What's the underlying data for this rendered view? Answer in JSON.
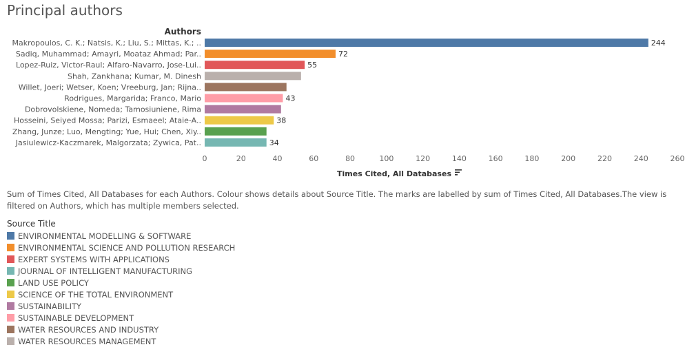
{
  "page": {
    "clipped_text": "",
    "title": "Principal authors"
  },
  "caption": "Sum of Times Cited, All Databases for each Authors. Colour shows details about Source Title. The marks are labelled by sum of Times Cited, All Databases.The view is filtered on Authors, which has multiple members selected.",
  "chart_data": {
    "type": "bar",
    "orientation": "horizontal",
    "row_header": "Authors",
    "xlabel": "Times Cited, All Databases",
    "xlabel_icon": "sort-descending-icon",
    "xlim": [
      0,
      260
    ],
    "xticks": [
      0,
      20,
      40,
      60,
      80,
      100,
      120,
      140,
      160,
      180,
      200,
      220,
      240,
      260
    ],
    "grid": false,
    "legend_position": "bottom",
    "categories": [
      "Makropoulos, C. K.; Natsis, K.; Liu, S.; Mittas, K.; ..",
      "Sadiq, Muhammad; Amayri, Moataz Ahmad; Par..",
      "Lopez-Ruiz, Victor-Raul; Alfaro-Navarro, Jose-Lui..",
      "Shah, Zankhana; Kumar, M. Dinesh",
      "Willet, Joeri; Wetser, Koen; Vreeburg, Jan; Rijna..",
      "Rodrigues, Margarida; Franco, Mario",
      "Dobrovolskiene, Nomeda; Tamosiuniene, Rima",
      "Hosseini, Seiyed Mossa; Parizi, Esmaeel; Ataie-A..",
      "Zhang, Junze; Luo, Mengting; Yue, Hui; Chen, Xiy..",
      "Jasiulewicz-Kaczmarek, Malgorzata; Zywica, Pat.."
    ],
    "values": [
      244,
      72,
      55,
      53,
      45,
      43,
      42,
      38,
      34,
      34
    ],
    "data_labels": [
      "244",
      "72",
      "55",
      "",
      "",
      "43",
      "",
      "38",
      "",
      "34"
    ],
    "source_titles": [
      "ENVIRONMENTAL MODELLING & SOFTWARE",
      "ENVIRONMENTAL SCIENCE AND POLLUTION RESEARCH",
      "EXPERT SYSTEMS WITH APPLICATIONS",
      "WATER RESOURCES MANAGEMENT",
      "WATER RESOURCES AND INDUSTRY",
      "SUSTAINABLE DEVELOPMENT",
      "SUSTAINABILITY",
      "SCIENCE OF THE TOTAL ENVIRONMENT",
      "LAND USE POLICY",
      "JOURNAL OF INTELLIGENT MANUFACTURING"
    ],
    "legend_title": "Source Title",
    "legend": [
      {
        "name": "ENVIRONMENTAL MODELLING & SOFTWARE",
        "color": "#4e79a7"
      },
      {
        "name": "ENVIRONMENTAL SCIENCE AND POLLUTION RESEARCH",
        "color": "#f28e2b"
      },
      {
        "name": "EXPERT SYSTEMS WITH APPLICATIONS",
        "color": "#e15759"
      },
      {
        "name": "JOURNAL OF INTELLIGENT MANUFACTURING",
        "color": "#76b7b2"
      },
      {
        "name": "LAND USE POLICY",
        "color": "#59a14f"
      },
      {
        "name": "SCIENCE OF THE TOTAL ENVIRONMENT",
        "color": "#edc948"
      },
      {
        "name": "SUSTAINABILITY",
        "color": "#b07aa1"
      },
      {
        "name": "SUSTAINABLE DEVELOPMENT",
        "color": "#ff9da7"
      },
      {
        "name": "WATER RESOURCES AND INDUSTRY",
        "color": "#9c755f"
      },
      {
        "name": "WATER RESOURCES MANAGEMENT",
        "color": "#bab0ac"
      }
    ]
  }
}
